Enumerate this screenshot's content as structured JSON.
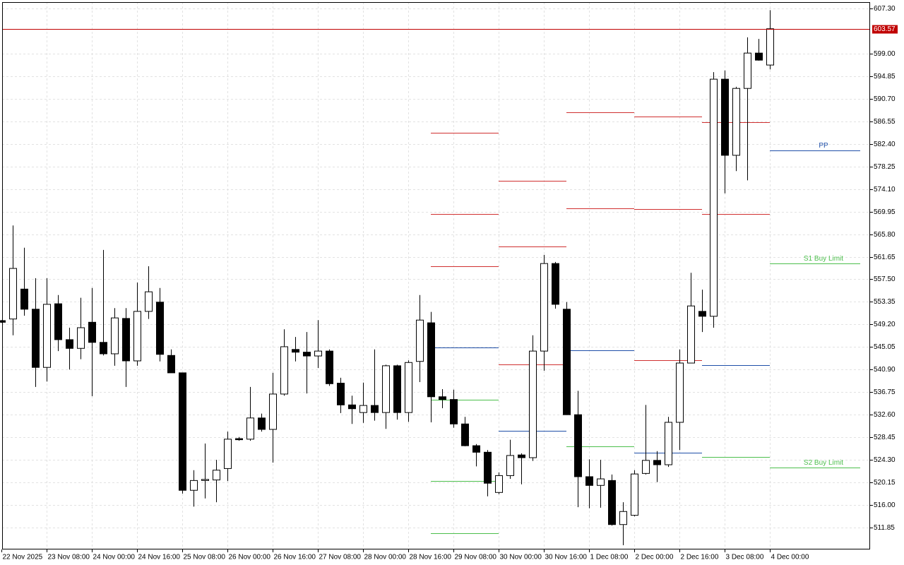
{
  "chart_data": {
    "type": "candlestick",
    "categories": [
      "22 Nov 2025",
      null,
      null,
      null,
      "23 Nov 08:00",
      null,
      null,
      null,
      "24 Nov 00:00",
      null,
      null,
      null,
      "24 Nov 16:00",
      null,
      null,
      null,
      "25 Nov 08:00",
      null,
      null,
      null,
      "26 Nov 00:00",
      null,
      null,
      null,
      "26 Nov 16:00",
      null,
      null,
      null,
      "27 Nov 08:00",
      null,
      null,
      null,
      "28 Nov 00:00",
      null,
      null,
      null,
      "28 Nov 16:00",
      null,
      null,
      null,
      "29 Nov 08:00",
      null,
      null,
      null,
      "30 Nov 00:00",
      null,
      null,
      null,
      "30 Nov 16:00",
      null,
      null,
      null,
      "1 Dec 08:00",
      null,
      null,
      null,
      "2 Dec 00:00",
      null,
      null,
      null,
      "2 Dec 16:00",
      null,
      null,
      null,
      "3 Dec 08:00",
      null,
      null,
      null,
      "4 Dec 00:00"
    ],
    "open": [
      549.9,
      550.2,
      555.7,
      552.0,
      541.3,
      553.0,
      546.4,
      544.8,
      549.6,
      545.9,
      543.8,
      550.3,
      542.5,
      551.6,
      553.3,
      543.5,
      540.3,
      518.7,
      520.5,
      520.6,
      522.7,
      528.2,
      528.1,
      532.0,
      529.9,
      536.4,
      544.6,
      544.1,
      543.4,
      544.3,
      538.4,
      534.4,
      533.0,
      534.3,
      533.0,
      541.6,
      533.0,
      542.4,
      549.5,
      535.9,
      535.4,
      530.9,
      526.9,
      525.7,
      518.3,
      521.4,
      525.2,
      524.7,
      544.3,
      560.4,
      552.0,
      532.6,
      521.2,
      519.6,
      520.5,
      512.4,
      514.1,
      521.8,
      524.2,
      523.4,
      531.2,
      542.1,
      551.6,
      550.7,
      594.3,
      580.3,
      592.6,
      599.1,
      596.9
    ],
    "high": [
      550.0,
      567.4,
      563.3,
      557.7,
      557.7,
      554.6,
      548.6,
      554.1,
      555.9,
      562.9,
      552.2,
      552.2,
      556.9,
      559.9,
      555.9,
      544.6,
      540.3,
      522.4,
      527.3,
      524.3,
      529.5,
      528.5,
      537.7,
      532.8,
      540.3,
      548.3,
      546.9,
      547.8,
      550.0,
      544.6,
      539.4,
      536.1,
      538.5,
      544.6,
      541.8,
      541.8,
      542.6,
      554.6,
      551.5,
      537.3,
      537.2,
      532.2,
      527.2,
      526.1,
      522.0,
      528.0,
      525.5,
      547.2,
      562.0,
      560.7,
      553.3,
      537.0,
      524.4,
      524.3,
      521.6,
      516.5,
      522.4,
      534.4,
      525.9,
      532.2,
      544.6,
      558.7,
      555.6,
      595.6,
      595.9,
      592.9,
      602.0,
      601.7,
      607.0
    ],
    "low": [
      549.5,
      547.2,
      550.8,
      537.7,
      538.7,
      544.3,
      540.9,
      542.8,
      536.0,
      543.5,
      541.6,
      537.7,
      541.6,
      550.2,
      542.4,
      540.3,
      518.1,
      515.7,
      517.2,
      516.5,
      520.4,
      527.8,
      527.8,
      529.5,
      523.8,
      536.1,
      542.4,
      536.5,
      541.2,
      537.9,
      532.9,
      530.9,
      531.1,
      531.5,
      530.0,
      531.7,
      531.3,
      538.6,
      531.2,
      533.8,
      530.2,
      526.8,
      523.1,
      517.6,
      518.0,
      520.8,
      519.8,
      524.1,
      540.7,
      552.1,
      532.6,
      515.6,
      515.4,
      515.5,
      512.2,
      508.6,
      513.9,
      521.6,
      520.2,
      523.0,
      526.1,
      542.1,
      547.8,
      548.6,
      573.3,
      577.4,
      575.7,
      597.7,
      596.1
    ],
    "close": [
      549.6,
      559.5,
      552.0,
      541.3,
      552.9,
      546.4,
      544.8,
      548.6,
      545.9,
      543.8,
      550.4,
      542.5,
      551.6,
      555.2,
      543.7,
      540.3,
      518.7,
      520.5,
      520.7,
      522.4,
      528.1,
      528.0,
      532.0,
      529.9,
      536.4,
      545.1,
      544.1,
      543.4,
      544.3,
      538.3,
      534.4,
      533.7,
      534.3,
      533.0,
      541.6,
      533.0,
      542.2,
      550.0,
      535.9,
      535.4,
      530.9,
      526.9,
      525.7,
      520.0,
      521.4,
      525.1,
      524.7,
      544.3,
      560.4,
      552.9,
      532.6,
      521.2,
      519.6,
      520.8,
      512.4,
      514.8,
      521.7,
      524.2,
      523.4,
      531.2,
      542.1,
      552.6,
      550.7,
      594.3,
      580.3,
      592.6,
      599.1,
      597.8,
      603.57
    ],
    "up_color": "#ffffff",
    "down_color": "#000000",
    "ylim": [
      507.82,
      608.47
    ],
    "yticks": [
      {
        "value": 607.3,
        "label": "607.30"
      },
      {
        "value": 599,
        "label": "599.00"
      },
      594.85,
      {
        "value": 590.7,
        "label": "590.70"
      },
      586.55,
      {
        "value": 582.4,
        "label": "582.40"
      },
      578.25,
      {
        "value": 574.1,
        "label": "574.10"
      },
      569.95,
      {
        "value": 565.8,
        "label": "565.80"
      },
      561.65,
      {
        "value": 557.5,
        "label": "557.50"
      },
      553.35,
      {
        "value": 549.2,
        "label": "549.20"
      },
      545.05,
      {
        "value": 540.9,
        "label": "540.90"
      },
      536.75,
      {
        "value": 532.6,
        "label": "532.60"
      },
      528.45,
      {
        "value": 524.3,
        "label": "524.30"
      },
      520.15,
      {
        "value": 516,
        "label": "516.00"
      },
      511.85
    ],
    "grid": true,
    "last_price": 603.57,
    "last_price_color": "#c00000",
    "levels": [
      {
        "from": 38,
        "to": 44,
        "value": 584.44,
        "color": "#d03030"
      },
      {
        "from": 38,
        "to": 44,
        "value": 569.51,
        "color": "#d03030"
      },
      {
        "from": 38,
        "to": 44,
        "value": 559.9,
        "color": "#d03030"
      },
      {
        "from": 38,
        "to": 44,
        "value": 544.96,
        "color": "#1f4fa8"
      },
      {
        "from": 38,
        "to": 44,
        "value": 535.35,
        "color": "#4cbf4c"
      },
      {
        "from": 38,
        "to": 44,
        "value": 520.42,
        "color": "#4cbf4c"
      },
      {
        "from": 38,
        "to": 44,
        "value": 510.81,
        "color": "#4cbf4c"
      },
      {
        "from": 44,
        "to": 50,
        "value": 575.61,
        "color": "#d03030"
      },
      {
        "from": 44,
        "to": 50,
        "value": 563.53,
        "color": "#d03030"
      },
      {
        "from": 44,
        "to": 50,
        "value": 541.85,
        "color": "#d03030"
      },
      {
        "from": 44,
        "to": 50,
        "value": 529.64,
        "color": "#1f4fa8"
      },
      {
        "from": 44,
        "to": 50,
        "value": 507.95,
        "color": "#4cbf4c"
      },
      {
        "from": 50,
        "to": 56,
        "value": 588.21,
        "color": "#d03030"
      },
      {
        "from": 50,
        "to": 56,
        "value": 570.55,
        "color": "#d03030"
      },
      {
        "from": 50,
        "to": 56,
        "value": 544.44,
        "color": "#1f4fa8"
      },
      {
        "from": 50,
        "to": 56,
        "value": 526.78,
        "color": "#4cbf4c"
      },
      {
        "from": 56,
        "to": 62,
        "value": 587.43,
        "color": "#d03030"
      },
      {
        "from": 56,
        "to": 62,
        "value": 570.42,
        "color": "#d03030"
      },
      {
        "from": 56,
        "to": 62,
        "value": 542.62,
        "color": "#d03030"
      },
      {
        "from": 56,
        "to": 62,
        "value": 525.61,
        "color": "#1f4fa8"
      },
      {
        "from": 62,
        "to": 68,
        "value": 586.39,
        "color": "#d03030"
      },
      {
        "from": 62,
        "to": 68,
        "value": 569.51,
        "color": "#d03030"
      },
      {
        "from": 62,
        "to": 68,
        "value": 541.72,
        "color": "#1f4fa8"
      },
      {
        "from": 62,
        "to": 68,
        "value": 524.83,
        "color": "#4cbf4c"
      },
      {
        "from": 68,
        "to": 76,
        "value": 581.2,
        "color": "#1f4fa8",
        "label": "PP"
      },
      {
        "from": 68,
        "to": 76,
        "value": 560.42,
        "color": "#4cbf4c",
        "label": "S1 Buy Limit"
      },
      {
        "from": 68,
        "to": 76,
        "value": 522.88,
        "color": "#4cbf4c",
        "label": "S2 Buy Limit"
      }
    ]
  }
}
